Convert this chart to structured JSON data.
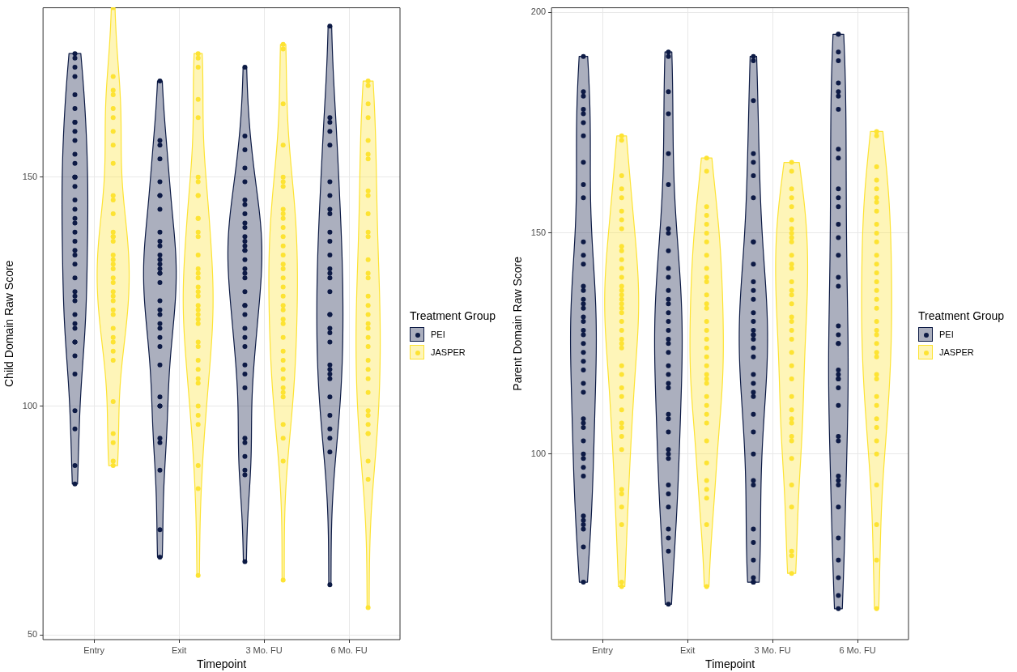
{
  "chart_data": [
    {
      "type": "scatter",
      "xlabel": "Timepoint",
      "ylabel": "Child Domain Raw Score",
      "legend_title": "Treatment Group",
      "legend": "right",
      "grid": true,
      "marker": "circle",
      "categories": [
        "Entry",
        "Exit",
        "3 Mo. FU",
        "6 Mo. FU"
      ],
      "ylim": [
        49,
        187
      ],
      "yticks": [
        50,
        100,
        150
      ],
      "series": [
        {
          "name": "PEI",
          "color": "#0d1b45",
          "x": [
            "Entry",
            "Entry",
            "Entry",
            "Entry",
            "Entry",
            "Entry",
            "Entry",
            "Entry",
            "Entry",
            "Entry",
            "Entry",
            "Entry",
            "Entry",
            "Entry",
            "Entry",
            "Entry",
            "Entry",
            "Entry",
            "Entry",
            "Entry",
            "Entry",
            "Entry",
            "Entry",
            "Entry",
            "Entry",
            "Entry",
            "Entry",
            "Entry",
            "Entry",
            "Entry",
            "Entry",
            "Entry",
            "Entry",
            "Entry",
            "Entry",
            "Entry",
            "Entry",
            "Entry",
            "Entry",
            "Entry",
            "Exit",
            "Exit",
            "Exit",
            "Exit",
            "Exit",
            "Exit",
            "Exit",
            "Exit",
            "Exit",
            "Exit",
            "Exit",
            "Exit",
            "Exit",
            "Exit",
            "Exit",
            "Exit",
            "Exit",
            "Exit",
            "Exit",
            "Exit",
            "Exit",
            "Exit",
            "Exit",
            "Exit",
            "Exit",
            "Exit",
            "Exit",
            "Exit",
            "Exit",
            "Exit",
            "Exit",
            "Exit",
            "Exit",
            "Exit",
            "3 Mo. FU",
            "3 Mo. FU",
            "3 Mo. FU",
            "3 Mo. FU",
            "3 Mo. FU",
            "3 Mo. FU",
            "3 Mo. FU",
            "3 Mo. FU",
            "3 Mo. FU",
            "3 Mo. FU",
            "3 Mo. FU",
            "3 Mo. FU",
            "3 Mo. FU",
            "3 Mo. FU",
            "3 Mo. FU",
            "3 Mo. FU",
            "3 Mo. FU",
            "3 Mo. FU",
            "3 Mo. FU",
            "3 Mo. FU",
            "3 Mo. FU",
            "3 Mo. FU",
            "3 Mo. FU",
            "3 Mo. FU",
            "3 Mo. FU",
            "3 Mo. FU",
            "3 Mo. FU",
            "3 Mo. FU",
            "3 Mo. FU",
            "3 Mo. FU",
            "3 Mo. FU",
            "3 Mo. FU",
            "3 Mo. FU",
            "3 Mo. FU",
            "3 Mo. FU",
            "6 Mo. FU",
            "6 Mo. FU",
            "6 Mo. FU",
            "6 Mo. FU",
            "6 Mo. FU",
            "6 Mo. FU",
            "6 Mo. FU",
            "6 Mo. FU",
            "6 Mo. FU",
            "6 Mo. FU",
            "6 Mo. FU",
            "6 Mo. FU",
            "6 Mo. FU",
            "6 Mo. FU",
            "6 Mo. FU",
            "6 Mo. FU",
            "6 Mo. FU",
            "6 Mo. FU",
            "6 Mo. FU",
            "6 Mo. FU",
            "6 Mo. FU",
            "6 Mo. FU",
            "6 Mo. FU",
            "6 Mo. FU",
            "6 Mo. FU",
            "6 Mo. FU",
            "6 Mo. FU",
            "6 Mo. FU",
            "6 Mo. FU",
            "6 Mo. FU",
            "6 Mo. FU"
          ],
          "values": [
            177,
            176,
            174,
            172,
            168,
            165,
            162,
            162,
            160,
            158,
            155,
            153,
            150,
            150,
            150,
            148,
            145,
            143,
            141,
            140,
            138,
            136,
            134,
            133,
            131,
            128,
            125,
            124,
            123,
            120,
            118,
            117,
            114,
            114,
            111,
            107,
            99,
            95,
            87,
            83,
            171,
            158,
            157,
            154,
            149,
            146,
            146,
            143,
            138,
            136,
            135,
            133,
            132,
            131,
            130,
            129,
            129,
            127,
            123,
            121,
            120,
            118,
            117,
            115,
            113,
            109,
            102,
            100,
            100,
            93,
            92,
            86,
            73,
            67,
            174,
            159,
            156,
            152,
            149,
            145,
            144,
            142,
            140,
            139,
            137,
            136,
            135,
            134,
            134,
            132,
            130,
            129,
            128,
            125,
            122,
            122,
            120,
            117,
            115,
            113,
            109,
            107,
            104,
            93,
            92,
            89,
            86,
            85,
            66,
            183,
            163,
            162,
            160,
            157,
            149,
            146,
            143,
            142,
            138,
            136,
            133,
            130,
            129,
            128,
            125,
            120,
            120,
            117,
            116,
            114,
            109,
            108,
            107,
            106,
            102,
            98,
            95,
            93,
            90,
            61
          ]
        },
        {
          "name": "JASPER",
          "color": "#fde333",
          "x": [
            "Entry",
            "Entry",
            "Entry",
            "Entry",
            "Entry",
            "Entry",
            "Entry",
            "Entry",
            "Entry",
            "Entry",
            "Entry",
            "Entry",
            "Entry",
            "Entry",
            "Entry",
            "Entry",
            "Entry",
            "Entry",
            "Entry",
            "Entry",
            "Entry",
            "Entry",
            "Entry",
            "Entry",
            "Entry",
            "Entry",
            "Entry",
            "Entry",
            "Entry",
            "Entry",
            "Entry",
            "Entry",
            "Entry",
            "Entry",
            "Entry",
            "Entry",
            "Entry",
            "Exit",
            "Exit",
            "Exit",
            "Exit",
            "Exit",
            "Exit",
            "Exit",
            "Exit",
            "Exit",
            "Exit",
            "Exit",
            "Exit",
            "Exit",
            "Exit",
            "Exit",
            "Exit",
            "Exit",
            "Exit",
            "Exit",
            "Exit",
            "Exit",
            "Exit",
            "Exit",
            "Exit",
            "Exit",
            "Exit",
            "Exit",
            "Exit",
            "Exit",
            "Exit",
            "Exit",
            "Exit",
            "Exit",
            "Exit",
            "Exit",
            "Exit",
            "Exit",
            "3 Mo. FU",
            "3 Mo. FU",
            "3 Mo. FU",
            "3 Mo. FU",
            "3 Mo. FU",
            "3 Mo. FU",
            "3 Mo. FU",
            "3 Mo. FU",
            "3 Mo. FU",
            "3 Mo. FU",
            "3 Mo. FU",
            "3 Mo. FU",
            "3 Mo. FU",
            "3 Mo. FU",
            "3 Mo. FU",
            "3 Mo. FU",
            "3 Mo. FU",
            "3 Mo. FU",
            "3 Mo. FU",
            "3 Mo. FU",
            "3 Mo. FU",
            "3 Mo. FU",
            "3 Mo. FU",
            "3 Mo. FU",
            "3 Mo. FU",
            "3 Mo. FU",
            "3 Mo. FU",
            "3 Mo. FU",
            "3 Mo. FU",
            "3 Mo. FU",
            "3 Mo. FU",
            "3 Mo. FU",
            "3 Mo. FU",
            "3 Mo. FU",
            "3 Mo. FU",
            "6 Mo. FU",
            "6 Mo. FU",
            "6 Mo. FU",
            "6 Mo. FU",
            "6 Mo. FU",
            "6 Mo. FU",
            "6 Mo. FU",
            "6 Mo. FU",
            "6 Mo. FU",
            "6 Mo. FU",
            "6 Mo. FU",
            "6 Mo. FU",
            "6 Mo. FU",
            "6 Mo. FU",
            "6 Mo. FU",
            "6 Mo. FU",
            "6 Mo. FU",
            "6 Mo. FU",
            "6 Mo. FU",
            "6 Mo. FU",
            "6 Mo. FU",
            "6 Mo. FU",
            "6 Mo. FU",
            "6 Mo. FU",
            "6 Mo. FU",
            "6 Mo. FU",
            "6 Mo. FU",
            "6 Mo. FU",
            "6 Mo. FU",
            "6 Mo. FU",
            "6 Mo. FU",
            "6 Mo. FU",
            "6 Mo. FU",
            "6 Mo. FU"
          ],
          "values": [
            187,
            172,
            169,
            168,
            165,
            163,
            160,
            157,
            153,
            146,
            145,
            142,
            138,
            137,
            137,
            136,
            133,
            132,
            131,
            130,
            128,
            127,
            125,
            124,
            123,
            121,
            120,
            117,
            115,
            114,
            112,
            110,
            101,
            94,
            92,
            88,
            87,
            177,
            176,
            174,
            167,
            163,
            150,
            149,
            146,
            146,
            141,
            141,
            138,
            137,
            133,
            130,
            129,
            128,
            126,
            125,
            124,
            122,
            121,
            120,
            119,
            118,
            114,
            113,
            110,
            108,
            106,
            105,
            100,
            98,
            96,
            87,
            82,
            63,
            179,
            178,
            166,
            157,
            150,
            149,
            148,
            143,
            142,
            141,
            139,
            137,
            135,
            133,
            131,
            130,
            128,
            126,
            124,
            122,
            121,
            119,
            118,
            115,
            112,
            110,
            108,
            106,
            104,
            103,
            102,
            96,
            93,
            88,
            62,
            171,
            170,
            166,
            163,
            158,
            155,
            154,
            147,
            146,
            142,
            138,
            137,
            132,
            129,
            128,
            124,
            122,
            120,
            118,
            117,
            115,
            113,
            110,
            108,
            106,
            103,
            99,
            98,
            96,
            94,
            94,
            88,
            84,
            56
          ]
        }
      ]
    },
    {
      "type": "scatter",
      "xlabel": "Timepoint",
      "ylabel": "Parent Domain Raw Score",
      "legend_title": "Treatment Group",
      "legend": "right",
      "grid": true,
      "marker": "circle",
      "categories": [
        "Entry",
        "Exit",
        "3 Mo. FU",
        "6 Mo. FU"
      ],
      "ylim": [
        58,
        201
      ],
      "yticks": [
        100,
        150,
        200
      ],
      "series": [
        {
          "name": "PEI",
          "color": "#0d1b45",
          "x": [
            "Entry",
            "Entry",
            "Entry",
            "Entry",
            "Entry",
            "Entry",
            "Entry",
            "Entry",
            "Entry",
            "Entry",
            "Entry",
            "Entry",
            "Entry",
            "Entry",
            "Entry",
            "Entry",
            "Entry",
            "Entry",
            "Entry",
            "Entry",
            "Entry",
            "Entry",
            "Entry",
            "Entry",
            "Entry",
            "Entry",
            "Entry",
            "Entry",
            "Entry",
            "Entry",
            "Entry",
            "Entry",
            "Entry",
            "Entry",
            "Entry",
            "Entry",
            "Entry",
            "Entry",
            "Entry",
            "Entry",
            "Entry",
            "Entry",
            "Exit",
            "Exit",
            "Exit",
            "Exit",
            "Exit",
            "Exit",
            "Exit",
            "Exit",
            "Exit",
            "Exit",
            "Exit",
            "Exit",
            "Exit",
            "Exit",
            "Exit",
            "Exit",
            "Exit",
            "Exit",
            "Exit",
            "Exit",
            "Exit",
            "Exit",
            "Exit",
            "Exit",
            "Exit",
            "Exit",
            "Exit",
            "Exit",
            "Exit",
            "Exit",
            "Exit",
            "Exit",
            "Exit",
            "Exit",
            "Exit",
            "Exit",
            "Exit",
            "3 Mo. FU",
            "3 Mo. FU",
            "3 Mo. FU",
            "3 Mo. FU",
            "3 Mo. FU",
            "3 Mo. FU",
            "3 Mo. FU",
            "3 Mo. FU",
            "3 Mo. FU",
            "3 Mo. FU",
            "3 Mo. FU",
            "3 Mo. FU",
            "3 Mo. FU",
            "3 Mo. FU",
            "3 Mo. FU",
            "3 Mo. FU",
            "3 Mo. FU",
            "3 Mo. FU",
            "3 Mo. FU",
            "3 Mo. FU",
            "3 Mo. FU",
            "3 Mo. FU",
            "3 Mo. FU",
            "3 Mo. FU",
            "3 Mo. FU",
            "3 Mo. FU",
            "3 Mo. FU",
            "3 Mo. FU",
            "3 Mo. FU",
            "3 Mo. FU",
            "3 Mo. FU",
            "3 Mo. FU",
            "3 Mo. FU",
            "3 Mo. FU",
            "3 Mo. FU",
            "3 Mo. FU",
            "6 Mo. FU",
            "6 Mo. FU",
            "6 Mo. FU",
            "6 Mo. FU",
            "6 Mo. FU",
            "6 Mo. FU",
            "6 Mo. FU",
            "6 Mo. FU",
            "6 Mo. FU",
            "6 Mo. FU",
            "6 Mo. FU",
            "6 Mo. FU",
            "6 Mo. FU",
            "6 Mo. FU",
            "6 Mo. FU",
            "6 Mo. FU",
            "6 Mo. FU",
            "6 Mo. FU",
            "6 Mo. FU",
            "6 Mo. FU",
            "6 Mo. FU",
            "6 Mo. FU",
            "6 Mo. FU",
            "6 Mo. FU",
            "6 Mo. FU",
            "6 Mo. FU",
            "6 Mo. FU",
            "6 Mo. FU",
            "6 Mo. FU",
            "6 Mo. FU",
            "6 Mo. FU",
            "6 Mo. FU",
            "6 Mo. FU",
            "6 Mo. FU",
            "6 Mo. FU",
            "6 Mo. FU",
            "6 Mo. FU",
            "6 Mo. FU",
            "6 Mo. FU"
          ],
          "values": [
            190,
            182,
            181,
            178,
            177,
            175,
            172,
            166,
            161,
            158,
            148,
            145,
            143,
            138,
            137,
            135,
            134,
            133,
            131,
            130,
            128,
            127,
            125,
            123,
            121,
            119,
            116,
            114,
            108,
            107,
            106,
            103,
            100,
            99,
            97,
            95,
            86,
            85,
            84,
            83,
            79,
            71,
            191,
            190,
            182,
            177,
            168,
            161,
            151,
            150,
            146,
            142,
            140,
            137,
            135,
            134,
            132,
            130,
            128,
            126,
            125,
            123,
            120,
            118,
            116,
            115,
            109,
            108,
            105,
            101,
            100,
            99,
            93,
            91,
            88,
            83,
            81,
            78,
            66,
            190,
            189,
            180,
            168,
            166,
            163,
            158,
            148,
            148,
            143,
            139,
            137,
            135,
            132,
            130,
            128,
            127,
            127,
            126,
            124,
            122,
            118,
            116,
            114,
            113,
            109,
            105,
            100,
            94,
            93,
            83,
            80,
            76,
            72,
            71,
            71,
            195,
            195,
            191,
            189,
            184,
            182,
            181,
            178,
            169,
            167,
            160,
            158,
            156,
            152,
            149,
            145,
            140,
            138,
            129,
            127,
            125,
            125,
            119,
            118,
            117,
            117,
            115,
            111,
            104,
            103,
            95,
            94,
            93,
            88,
            81,
            76,
            72,
            68,
            65
          ]
        },
        {
          "name": "JASPER",
          "color": "#fde333",
          "x": [
            "Entry",
            "Entry",
            "Entry",
            "Entry",
            "Entry",
            "Entry",
            "Entry",
            "Entry",
            "Entry",
            "Entry",
            "Entry",
            "Entry",
            "Entry",
            "Entry",
            "Entry",
            "Entry",
            "Entry",
            "Entry",
            "Entry",
            "Entry",
            "Entry",
            "Entry",
            "Entry",
            "Entry",
            "Entry",
            "Entry",
            "Entry",
            "Entry",
            "Entry",
            "Entry",
            "Entry",
            "Entry",
            "Entry",
            "Entry",
            "Entry",
            "Entry",
            "Entry",
            "Entry",
            "Entry",
            "Entry",
            "Exit",
            "Exit",
            "Exit",
            "Exit",
            "Exit",
            "Exit",
            "Exit",
            "Exit",
            "Exit",
            "Exit",
            "Exit",
            "Exit",
            "Exit",
            "Exit",
            "Exit",
            "Exit",
            "Exit",
            "Exit",
            "Exit",
            "Exit",
            "Exit",
            "Exit",
            "Exit",
            "Exit",
            "Exit",
            "Exit",
            "Exit",
            "Exit",
            "Exit",
            "Exit",
            "Exit",
            "Exit",
            "Exit",
            "Exit",
            "3 Mo. FU",
            "3 Mo. FU",
            "3 Mo. FU",
            "3 Mo. FU",
            "3 Mo. FU",
            "3 Mo. FU",
            "3 Mo. FU",
            "3 Mo. FU",
            "3 Mo. FU",
            "3 Mo. FU",
            "3 Mo. FU",
            "3 Mo. FU",
            "3 Mo. FU",
            "3 Mo. FU",
            "3 Mo. FU",
            "3 Mo. FU",
            "3 Mo. FU",
            "3 Mo. FU",
            "3 Mo. FU",
            "3 Mo. FU",
            "3 Mo. FU",
            "3 Mo. FU",
            "3 Mo. FU",
            "3 Mo. FU",
            "3 Mo. FU",
            "3 Mo. FU",
            "3 Mo. FU",
            "3 Mo. FU",
            "3 Mo. FU",
            "3 Mo. FU",
            "3 Mo. FU",
            "3 Mo. FU",
            "3 Mo. FU",
            "3 Mo. FU",
            "3 Mo. FU",
            "3 Mo. FU",
            "6 Mo. FU",
            "6 Mo. FU",
            "6 Mo. FU",
            "6 Mo. FU",
            "6 Mo. FU",
            "6 Mo. FU",
            "6 Mo. FU",
            "6 Mo. FU",
            "6 Mo. FU",
            "6 Mo. FU",
            "6 Mo. FU",
            "6 Mo. FU",
            "6 Mo. FU",
            "6 Mo. FU",
            "6 Mo. FU",
            "6 Mo. FU",
            "6 Mo. FU",
            "6 Mo. FU",
            "6 Mo. FU",
            "6 Mo. FU",
            "6 Mo. FU",
            "6 Mo. FU",
            "6 Mo. FU",
            "6 Mo. FU",
            "6 Mo. FU",
            "6 Mo. FU",
            "6 Mo. FU",
            "6 Mo. FU",
            "6 Mo. FU",
            "6 Mo. FU",
            "6 Mo. FU",
            "6 Mo. FU",
            "6 Mo. FU",
            "6 Mo. FU",
            "6 Mo. FU",
            "6 Mo. FU"
          ],
          "values": [
            172,
            171,
            163,
            160,
            158,
            155,
            153,
            151,
            147,
            146,
            144,
            142,
            140,
            138,
            137,
            136,
            135,
            134,
            133,
            132,
            130,
            128,
            126,
            125,
            124,
            120,
            118,
            115,
            113,
            110,
            107,
            106,
            104,
            101,
            92,
            91,
            88,
            84,
            71,
            70,
            167,
            164,
            156,
            154,
            152,
            150,
            148,
            145,
            142,
            140,
            139,
            136,
            134,
            133,
            130,
            128,
            126,
            124,
            122,
            120,
            118,
            117,
            116,
            113,
            111,
            109,
            107,
            103,
            98,
            94,
            92,
            90,
            84,
            70,
            166,
            164,
            160,
            158,
            156,
            153,
            151,
            150,
            149,
            148,
            145,
            143,
            142,
            139,
            137,
            136,
            134,
            131,
            130,
            128,
            126,
            123,
            120,
            117,
            113,
            110,
            108,
            107,
            104,
            103,
            99,
            93,
            88,
            78,
            77,
            73,
            173,
            172,
            165,
            162,
            160,
            158,
            157,
            155,
            152,
            150,
            148,
            145,
            143,
            141,
            139,
            137,
            135,
            133,
            130,
            128,
            127,
            125,
            123,
            122,
            118,
            117,
            113,
            111,
            108,
            106,
            103,
            100,
            93,
            84,
            76,
            65
          ]
        }
      ]
    }
  ]
}
